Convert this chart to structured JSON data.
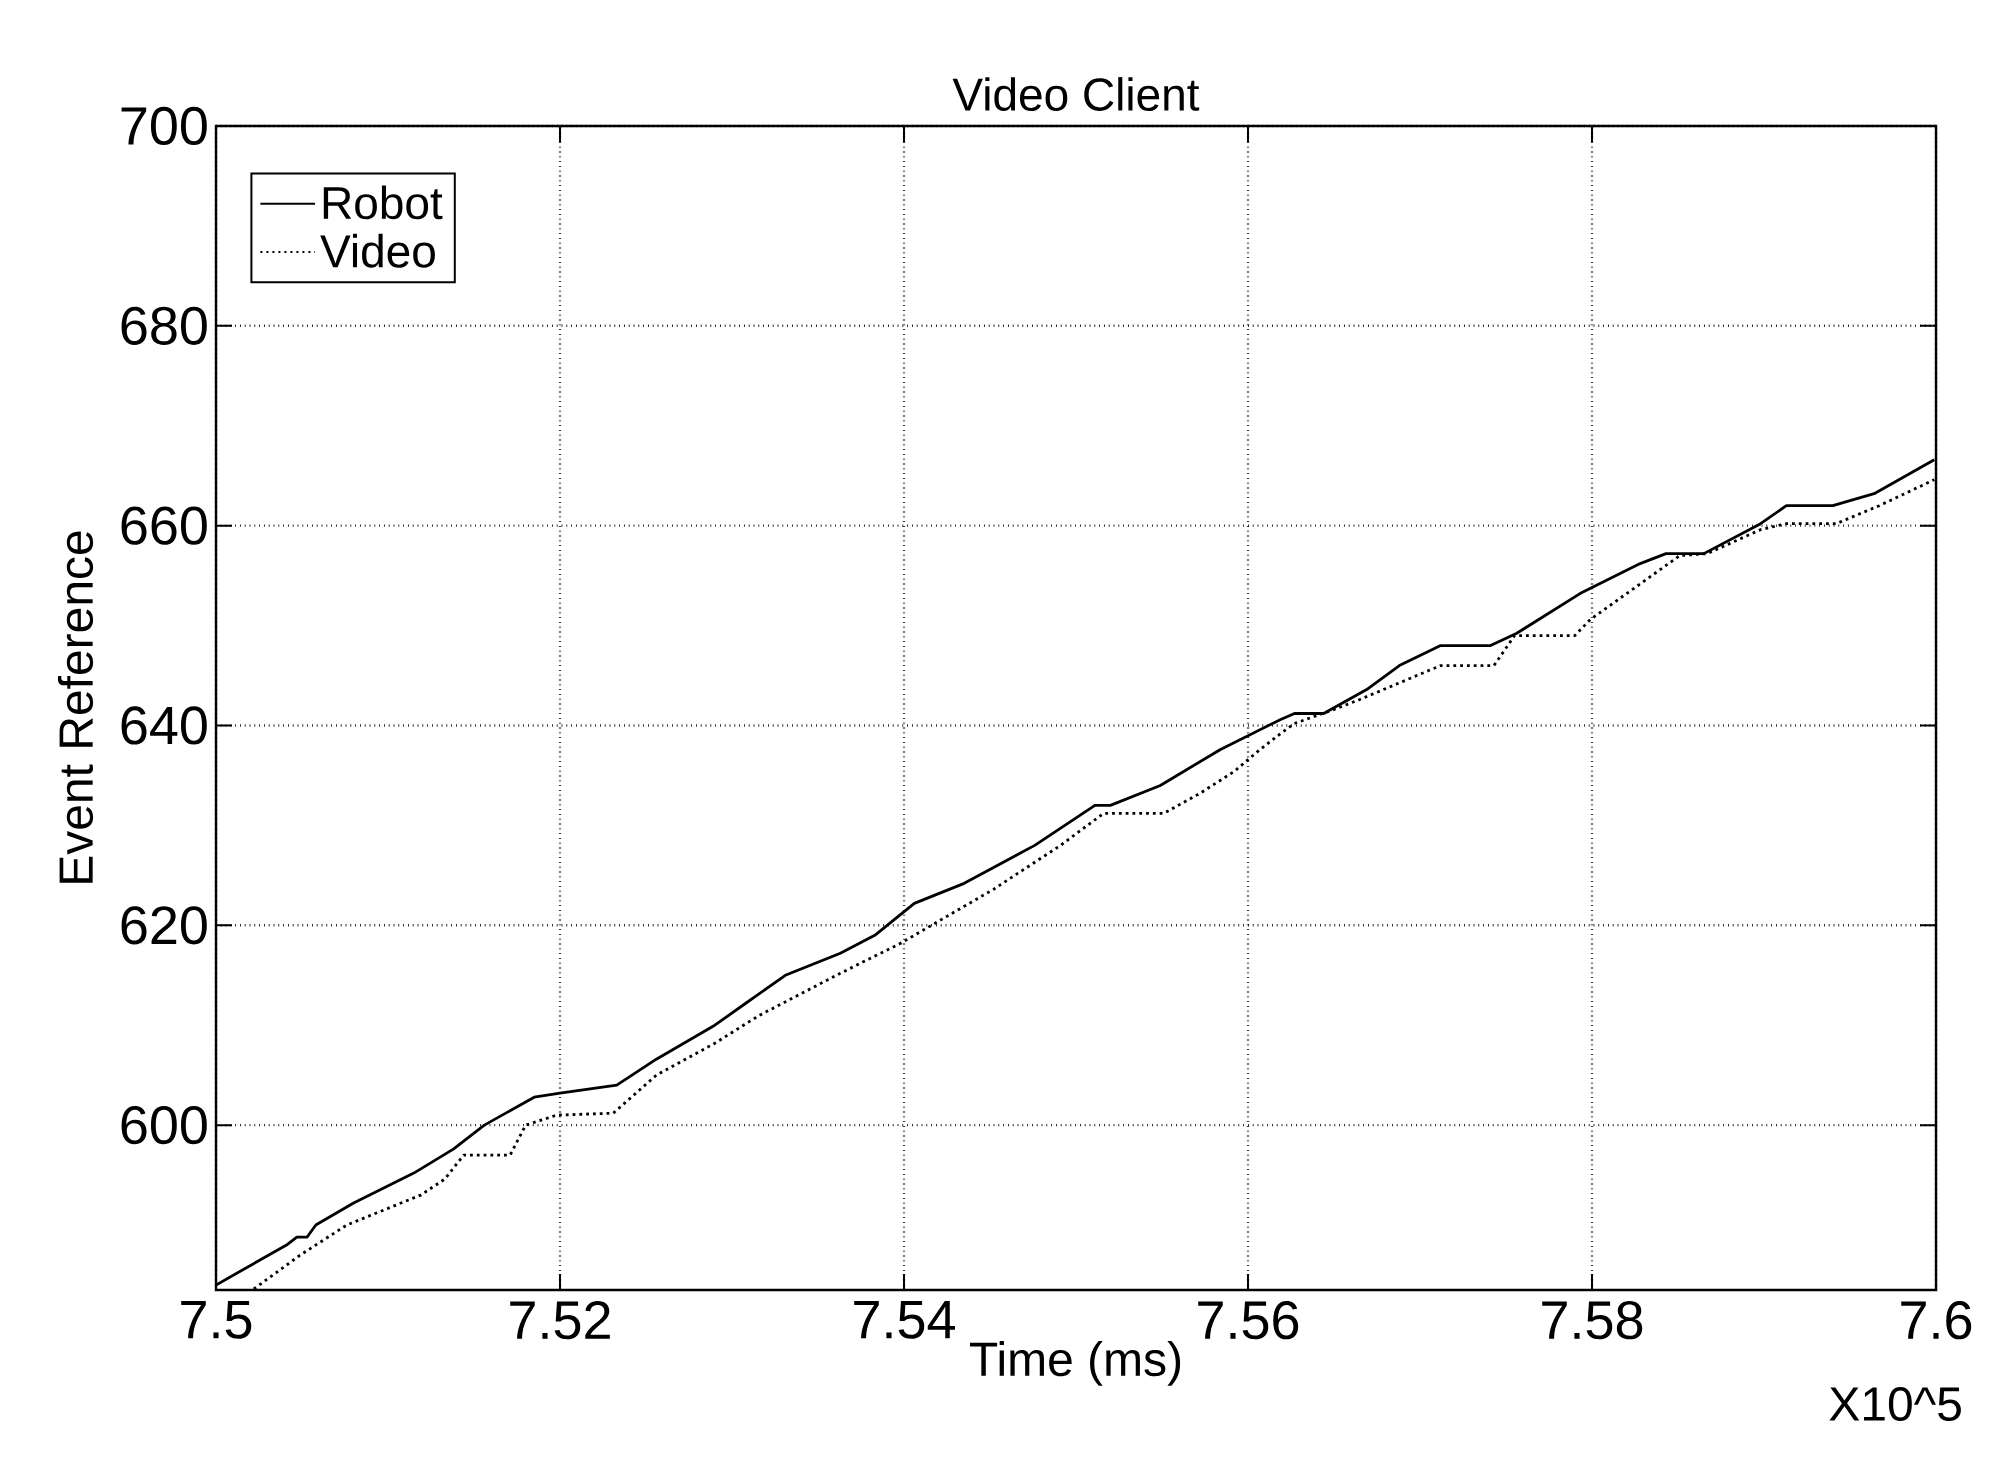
{
  "chart_data": {
    "type": "line",
    "title": "Video Client",
    "xlabel": "Time (ms)",
    "ylabel": "Event Reference",
    "annotations": [
      "X10^5"
    ],
    "xlim": [
      7.5,
      7.6
    ],
    "ylim": [
      583.5,
      700
    ],
    "xticks": [
      7.5,
      7.52,
      7.54,
      7.56,
      7.58,
      7.6
    ],
    "yticks": [
      600,
      620,
      640,
      660,
      680,
      700
    ],
    "grid": true,
    "legend": "top left",
    "series": [
      {
        "name": "Robot",
        "color": "#000000",
        "line_style": "solid",
        "x": [
          7.5,
          7.5041,
          7.5047,
          7.5053,
          7.5058,
          7.508,
          7.5115,
          7.5138,
          7.5156,
          7.5185,
          7.52,
          7.5233,
          7.5256,
          7.529,
          7.5308,
          7.5331,
          7.5363,
          7.5383,
          7.5406,
          7.5435,
          7.5476,
          7.5511,
          7.552,
          7.5549,
          7.5584,
          7.5619,
          7.5627,
          7.5644,
          7.5669,
          7.5688,
          7.5712,
          7.5741,
          7.5756,
          7.5793,
          7.5828,
          7.5843,
          7.5865,
          7.5898,
          7.5913,
          7.594,
          7.5964,
          7.5999
        ],
        "values": [
          584.0,
          588,
          588.8,
          588.8,
          590,
          592.2,
          595.2,
          597.6,
          600,
          602.8,
          603.2,
          604,
          606.6,
          610,
          612.2,
          615,
          617.2,
          619,
          622.2,
          624.2,
          628,
          632,
          632,
          634,
          637.6,
          640.6,
          641.2,
          641.2,
          643.6,
          646,
          648,
          648,
          649.2,
          653.2,
          656.2,
          657.2,
          657.2,
          660.2,
          662,
          662,
          663.2,
          666.6
        ]
      },
      {
        "name": "Video",
        "color": "#000000",
        "line_style": "dotted",
        "x": [
          7.5022,
          7.5049,
          7.5076,
          7.5119,
          7.5133,
          7.5144,
          7.5171,
          7.518,
          7.5198,
          7.5231,
          7.5256,
          7.529,
          7.5316,
          7.5363,
          7.5398,
          7.5452,
          7.5491,
          7.5516,
          7.5551,
          7.5572,
          7.5592,
          7.5607,
          7.5619,
          7.5627,
          7.565,
          7.5665,
          7.5712,
          7.5743,
          7.5755,
          7.579,
          7.5799,
          7.5851,
          7.5867,
          7.5898,
          7.5913,
          7.5942,
          7.5967,
          7.5999
        ],
        "values": [
          583.6,
          587,
          590,
          593,
          594.6,
          597,
          597,
          600,
          601,
          601.2,
          605,
          608.2,
          611,
          615.2,
          618.2,
          623.6,
          628,
          631.2,
          631.2,
          633.2,
          635.4,
          637.6,
          639.2,
          640.2,
          641.6,
          642.6,
          646,
          646,
          649,
          649,
          650.6,
          657,
          657.2,
          659.6,
          660.2,
          660.2,
          662,
          664.6
        ]
      }
    ]
  }
}
